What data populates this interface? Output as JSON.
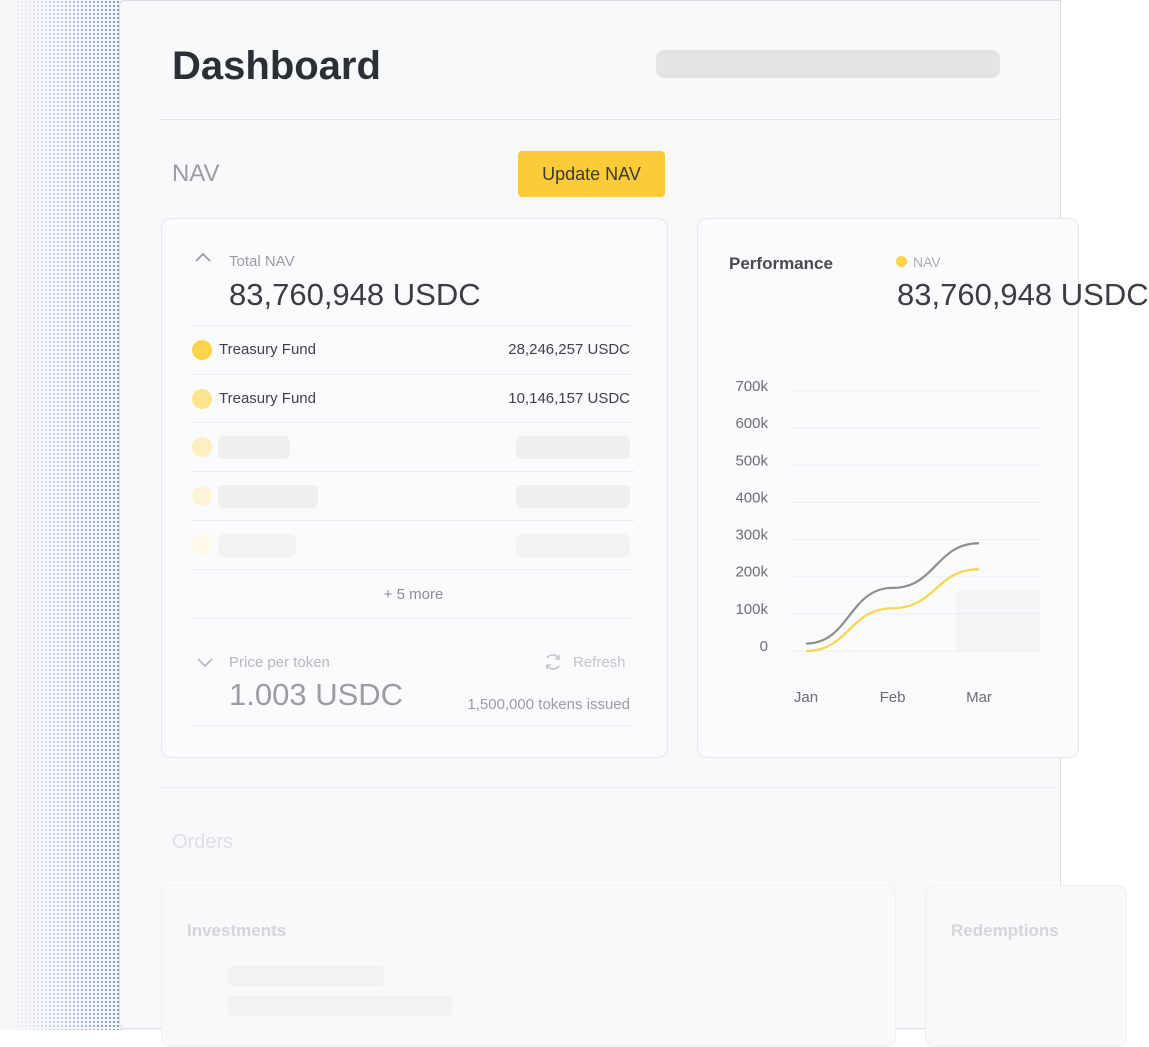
{
  "header": {
    "title": "Dashboard"
  },
  "nav_section": {
    "title": "NAV",
    "button": "Update NAV"
  },
  "nav_card": {
    "label": "Total NAV",
    "value": "83,760,948 USDC",
    "holdings": [
      {
        "name": "Treasury Fund",
        "value": "28,246,257 USDC",
        "color": "#fcd34d"
      },
      {
        "name": "Treasury Fund",
        "value": "10,146,157 USDC",
        "color": "#fde48f"
      }
    ],
    "more": "+ 5 more",
    "price_label": "Price per token",
    "refresh": "Refresh",
    "price": "1.003 USDC",
    "tokens": "1,500,000 tokens issued"
  },
  "performance": {
    "title": "Performance",
    "value": "83,760,948 USDC",
    "chart_data": {
      "type": "line",
      "categories": [
        "Jan",
        "Feb",
        "Mar"
      ],
      "series": [
        {
          "name": "NAV",
          "color": "#fcd34d",
          "values": [
            0,
            115000,
            220000
          ]
        },
        {
          "color": "#8e8e8e",
          "values": [
            20000,
            170000,
            290000
          ]
        }
      ],
      "ylim": [
        0,
        700000
      ],
      "yticks": [
        0,
        {
          "value": 100000,
          "label": "100k"
        },
        {
          "value": 200000,
          "label": "200k"
        },
        {
          "value": 300000,
          "label": "300k"
        },
        {
          "value": 400000,
          "label": "400k"
        },
        {
          "value": 500000,
          "label": "500k"
        },
        {
          "value": 600000,
          "label": "600k"
        },
        {
          "value": 700000,
          "label": "700k"
        }
      ],
      "grid": true
    }
  },
  "orders": {
    "title": "Orders",
    "investments": "Investments",
    "redemptions": "Redemptions"
  }
}
